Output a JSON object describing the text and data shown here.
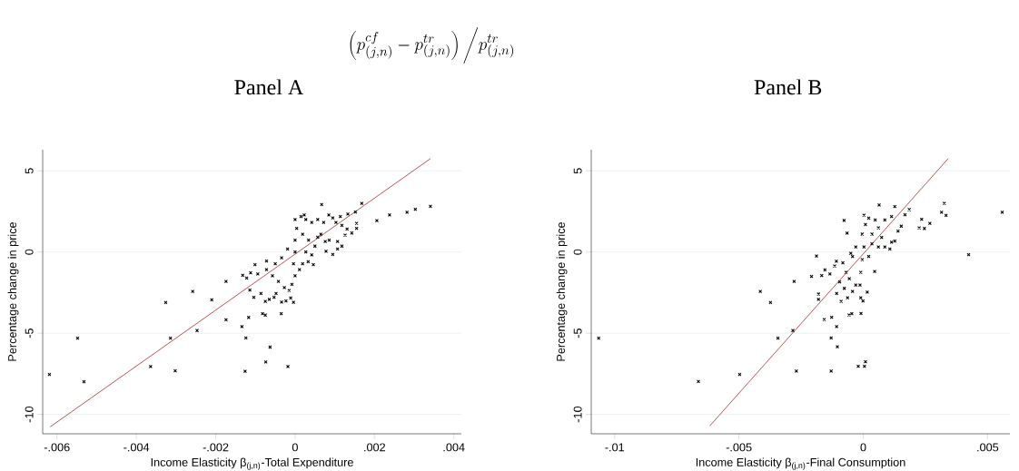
{
  "chart_data": [
    {
      "type": "scatter",
      "title": "Panel A",
      "annotations": [
        "\\left(p^{cf}_{(j,n)}-p^{tr}_{(j,n)}\\right)\\Bigg/p^{tr}_{(j,n)}"
      ],
      "xlabel": "Income Elasticity β$_{(j,n)}$-Total Expenditure",
      "ylabel": "Percentage change in price",
      "xlim": [
        -0.00636,
        0.00419
      ],
      "ylim": [
        -11.2,
        6.3
      ],
      "xticks": [
        {
          "value": -0.006,
          "label": "-.006"
        },
        {
          "value": -0.004,
          "label": "-.004"
        },
        {
          "value": -0.002,
          "label": "-.002"
        },
        0,
        {
          "value": 0.002,
          "label": ".002"
        },
        {
          "value": 0.004,
          "label": ".004"
        }
      ],
      "yticks": [
        -10,
        -5,
        0,
        5
      ],
      "grid": "y",
      "marker": "cross",
      "series": [
        {
          "color": "#000000",
          "x": [
            -0.00619,
            -0.00548,
            -0.00532,
            -0.00364,
            -0.00326,
            -0.00314,
            -0.00302,
            -0.00258,
            -0.00247,
            -0.0021,
            -0.00174,
            -0.00174,
            -0.00134,
            -0.00132,
            -0.00124,
            -0.00126,
            -0.00117,
            -0.00122,
            -0.00112,
            -0.00114,
            -0.00104,
            -0.00101,
            -0.00094,
            -0.00086,
            -0.00082,
            -0.00075,
            -0.00075,
            -0.00072,
            -0.00063,
            -0.00074,
            -0.00018,
            -0.00035,
            -0.00034,
            -0.00053,
            -0.00065,
            -0.00048,
            -4e-05,
            -0.00023,
            -0.00011,
            0,
            4e-05,
            0,
            0,
            -4e-05,
            0,
            -8e-05,
            -0.00015,
            -0.00027,
            -0.00042,
            -0.00057,
            -0.00072,
            -0.0005,
            -0.00034,
            -0.00019,
            0.00015,
            0.00027,
            0.00042,
            0.00019,
            0.00034,
            0.0005,
            0.00027,
            0.00042,
            0.00019,
            0.00011,
            0.00023,
            0.00067,
            0.00057,
            0.00072,
            0.00085,
            0.00095,
            0.00076,
            0.00086,
            0.00078,
            0.00095,
            0.00107,
            0.00107,
            0.00118,
            0.00046,
            0.00033,
            0.00114,
            0.00126,
            0.00133,
            0.00143,
            0.00152,
            0.00155,
            0.00155,
            0.00168,
            0.00131,
            0.00118,
            0.00103,
            0.00057,
            0.00065,
            0.00206,
            0.00238,
            0.00282,
            0.00303,
            0.00341
          ],
          "values": [
            -7.55,
            -5.31,
            -7.99,
            -7.06,
            -3.12,
            -5.31,
            -7.32,
            -2.43,
            -4.84,
            -2.94,
            -1.82,
            -4.18,
            -4.6,
            -1.44,
            -5.29,
            -7.35,
            -4.03,
            -1.61,
            -1.28,
            -2.34,
            -2.79,
            -0.78,
            -1.35,
            -2.55,
            -3.8,
            -3.89,
            -3.05,
            -0.55,
            -5.86,
            -6.77,
            -7.06,
            -3.8,
            -3.08,
            -2.79,
            -2.92,
            -2.55,
            -3.1,
            -3.01,
            -2.83,
            2.0,
            1.46,
            0.73,
            0,
            -0.73,
            -1.46,
            -2.0,
            -2.37,
            -2.19,
            -1.82,
            -1.46,
            -1.09,
            -0.73,
            -0.36,
            0.18,
            2.19,
            2.0,
            1.82,
            1.09,
            0.73,
            0.36,
            0,
            -0.18,
            -0.73,
            -1.09,
            2.28,
            2.92,
            2.0,
            1.82,
            2.28,
            2.1,
            0.64,
            0.73,
            0.04,
            -0.15,
            0.64,
            0.18,
            0.36,
            -0.78,
            -0.6,
            2.19,
            1.04,
            2.34,
            1.17,
            2.46,
            1.77,
            1.46,
            2.99,
            1.42,
            1.64,
            1.82,
            0.91,
            1.09,
            1.93,
            2.28,
            2.45,
            2.63,
            2.81
          ]
        },
        {
          "type": "line",
          "color": "#9b2d30",
          "marker": "none",
          "x": [
            -0.00617,
            0.00341
          ],
          "values": [
            -10.77,
            5.75
          ]
        }
      ]
    },
    {
      "type": "scatter",
      "title": "Panel B",
      "xlabel": "Income Elasticity β$_{(j,n)}$-Final Consumption",
      "ylabel": "Percentage change in price",
      "xlim": [
        -0.01094,
        0.0059
      ],
      "ylim": [
        -11.2,
        6.3
      ],
      "xticks": [
        {
          "value": -0.01,
          "label": "-.01"
        },
        {
          "value": -0.005,
          "label": "-.005"
        },
        0,
        {
          "value": 0.005,
          "label": ".005"
        }
      ],
      "yticks": [
        -10,
        -5,
        0,
        5
      ],
      "grid": "y",
      "marker": "cross",
      "series": [
        {
          "color": "#000000",
          "x": [
            -0.01064,
            -0.00663,
            -0.00497,
            -0.00414,
            -0.00373,
            -0.00343,
            -0.00283,
            -0.00278,
            -0.00269,
            -0.00188,
            -0.00208,
            -0.0018,
            -0.0018,
            -0.00157,
            -0.00167,
            -0.00154,
            -0.00134,
            -0.00129,
            -0.00129,
            -0.00127,
            -0.00107,
            -0.00104,
            -0.00107,
            -0.00089,
            -0.00077,
            -0.00065,
            -0.00057,
            -0.00046,
            -9e-05,
            -0.0002,
            5e-05,
            9e-05,
            0.00016,
            0.00046,
            0.00064,
            0.00127,
            0.00185,
            0.00168,
            0.00225,
            0.00235,
            0.00246,
            0.00268,
            0.00315,
            0.00326,
            0.00333,
            0.00424,
            0.00559,
            0.00107,
            0.00127,
            0.00114,
            0.00153,
            0.0014,
            0.00087,
            0.00074,
            3e-05,
            9e-05,
            0.00022,
            0.00048,
            -4e-05,
            3e-05,
            -4e-05,
            -0.0001,
            -0.00013,
            -0.0001,
            -1e-05,
            -0.0003,
            -0.00043,
            -0.00056,
            -0.00069,
            -0.00082,
            -0.00108,
            -0.00115,
            -0.00043,
            -0.0005,
            -0.0003,
            0.00035,
            0.00061,
            0.00087,
            0.00114,
            0.00035,
            0.00061,
            0.00022,
            -0.00095,
            -0.00076,
            -0.00063
          ],
          "values": [
            -5.31,
            -7.98,
            -7.55,
            -2.43,
            -3.12,
            -5.31,
            -4.84,
            -1.82,
            -7.33,
            -0.25,
            -1.51,
            -2.59,
            -2.92,
            -4.16,
            -1.45,
            -1.1,
            -1.35,
            -7.33,
            -5.29,
            -4.02,
            -4.59,
            -5.84,
            -2.55,
            -3.04,
            1.94,
            1.16,
            -3.88,
            -3.8,
            -3.78,
            -7.04,
            -7.04,
            -6.76,
            -2.47,
            -1.2,
            2.9,
            2.8,
            2.61,
            2.29,
            1.49,
            2.02,
            1.45,
            1.76,
            2.45,
            3.0,
            2.25,
            -0.16,
            2.45,
            0.18,
            0.67,
            0.61,
            1.59,
            1.29,
            0.31,
            0.9,
            2.27,
            1.69,
            2.08,
            1.98,
            1.1,
            0.31,
            -0.47,
            -1.25,
            -2.04,
            -2.82,
            -3.02,
            -2.04,
            -2.43,
            -1.65,
            -1.25,
            -0.67,
            -0.57,
            -0.86,
            -0.27,
            -0.08,
            0.31,
            1.1,
            1.49,
            1.98,
            2.18,
            0.51,
            0.31,
            -0.27,
            -1.84,
            -2.24,
            -2.82
          ]
        },
        {
          "type": "line",
          "color": "#9b2d30",
          "marker": "none",
          "x": [
            -0.00617,
            0.00342
          ],
          "values": [
            -10.71,
            5.76
          ]
        }
      ]
    }
  ]
}
